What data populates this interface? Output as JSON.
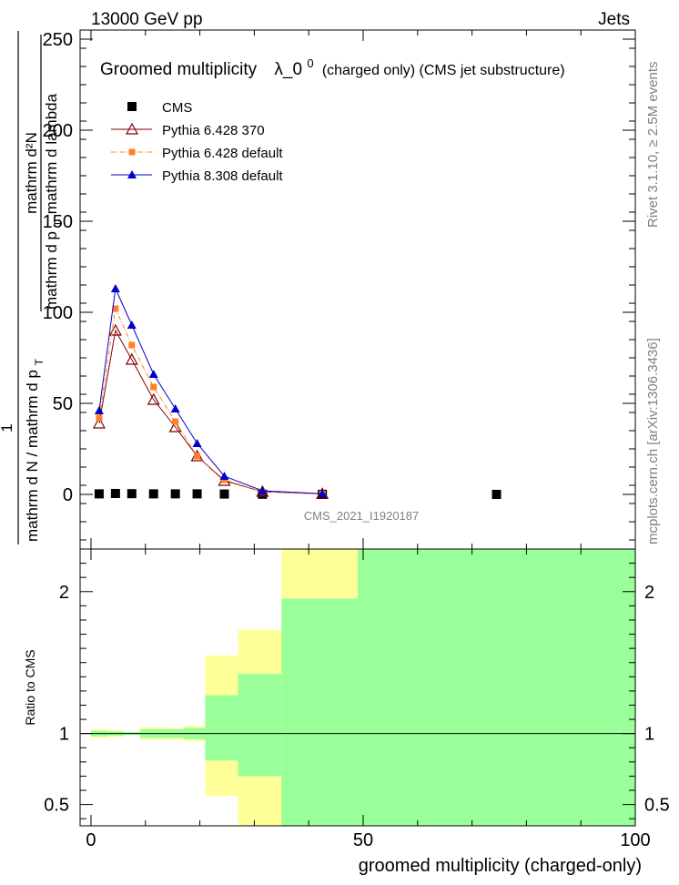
{
  "header": {
    "left": "13000 GeV pp",
    "right": "Jets"
  },
  "side_labels": {
    "rivet": "Rivet 3.1.10, ≥ 2.5M events",
    "mcplots": "mcplots.cern.ch [arXiv:1306.3436]"
  },
  "chart_data": [
    {
      "type": "scatter",
      "title_main": "Groomed multiplicity",
      "title_lambda": "λ_0",
      "title_sup": "0",
      "title_tail": "(charged only) (CMS jet substructure)",
      "watermark": "CMS_2021_I1920187",
      "ylabel": {
        "numerator_1": "1",
        "denominator_1": "mathrm d N / mathrm d p",
        "denominator_1_sub": "T",
        "numerator_2": "mathrm d²N",
        "denominator_2": "mathrm d p",
        "denominator_2_sub": "T",
        "denominator_2_tail": "mathrm d lambda"
      },
      "xlim": [
        -2,
        100
      ],
      "ylim": [
        -30,
        255
      ],
      "y_ticks": [
        0,
        50,
        100,
        150,
        200,
        250
      ],
      "y_tick_labels": [
        "0",
        "50",
        "100",
        "150",
        "200",
        "250"
      ],
      "legend_position": "top-left",
      "series": [
        {
          "name": "CMS",
          "color": "#000000",
          "marker": "square",
          "x": [
            1.5,
            4.5,
            7.5,
            11.5,
            15.5,
            19.5,
            24.5,
            31.5,
            42.5,
            74.5
          ],
          "y": [
            0.3,
            0.5,
            0.4,
            0.3,
            0.3,
            0.3,
            0.2,
            0.1,
            0.05,
            0.01
          ]
        },
        {
          "name": "Pythia 6.428 370",
          "color": "#800000",
          "marker": "triangle-open",
          "x": [
            1.5,
            4.5,
            7.5,
            11.5,
            15.5,
            19.5,
            24.5,
            31.5,
            42.5
          ],
          "y": [
            39,
            90,
            74,
            52,
            37,
            21,
            7.5,
            1.5,
            0.3
          ]
        },
        {
          "name": "Pythia 6.428 default",
          "color": "#ff7f2a",
          "marker": "square-small",
          "x": [
            1.5,
            4.5,
            7.5,
            11.5,
            15.5,
            19.5,
            24.5,
            31.5,
            42.5
          ],
          "y": [
            42,
            102,
            82,
            59,
            40,
            21,
            8,
            1.5,
            0.3
          ]
        },
        {
          "name": "Pythia 8.308 default",
          "color": "#0000cc",
          "marker": "triangle",
          "x": [
            1.5,
            4.5,
            7.5,
            11.5,
            15.5,
            19.5,
            24.5,
            31.5,
            42.5
          ],
          "y": [
            46,
            113,
            93,
            66,
            47,
            28,
            10,
            2,
            0.4
          ]
        }
      ]
    },
    {
      "type": "area",
      "ylabel": "Ratio to CMS",
      "xlabel": "groomed multiplicity (charged-only)",
      "xlim": [
        -2,
        100
      ],
      "ylim": [
        0.35,
        2.3
      ],
      "x_ticks": [
        0,
        50,
        100
      ],
      "x_tick_labels": [
        "0",
        "50",
        "100"
      ],
      "y_ticks": [
        0.5,
        1,
        2
      ],
      "y_tick_labels": [
        "0.5",
        "1",
        "2"
      ],
      "reference_line": 1,
      "bands": {
        "stat_color": "#99ff99",
        "total_color": "#ffff99",
        "bins": [
          {
            "x0": 0,
            "x1": 3,
            "stat": [
              0.98,
              1.02
            ],
            "total": [
              0.97,
              1.03
            ]
          },
          {
            "x0": 3,
            "x1": 6,
            "stat": [
              0.985,
              1.015
            ],
            "total": [
              0.975,
              1.025
            ]
          },
          {
            "x0": 6,
            "x1": 9,
            "stat": [
              0.99,
              1.01
            ],
            "total": [
              0.99,
              1.01
            ]
          },
          {
            "x0": 9,
            "x1": 14,
            "stat": [
              0.97,
              1.03
            ],
            "total": [
              0.955,
              1.045
            ]
          },
          {
            "x0": 14,
            "x1": 17,
            "stat": [
              0.97,
              1.03
            ],
            "total": [
              0.955,
              1.04
            ]
          },
          {
            "x0": 17,
            "x1": 21,
            "stat": [
              0.96,
              1.04
            ],
            "total": [
              0.945,
              1.055
            ]
          },
          {
            "x0": 21,
            "x1": 27,
            "stat": [
              0.81,
              1.27
            ],
            "total": [
              0.56,
              1.55
            ]
          },
          {
            "x0": 27,
            "x1": 35,
            "stat": [
              0.7,
              1.42
            ],
            "total": [
              0.2,
              1.73
            ]
          },
          {
            "x0": 35,
            "x1": 49,
            "stat": [
              0.2,
              1.95
            ],
            "total": [
              0.2,
              2.5
            ]
          },
          {
            "x0": 49,
            "x1": 100,
            "stat": [
              0.2,
              2.5
            ],
            "total": [
              0.2,
              2.5
            ]
          }
        ]
      }
    }
  ]
}
